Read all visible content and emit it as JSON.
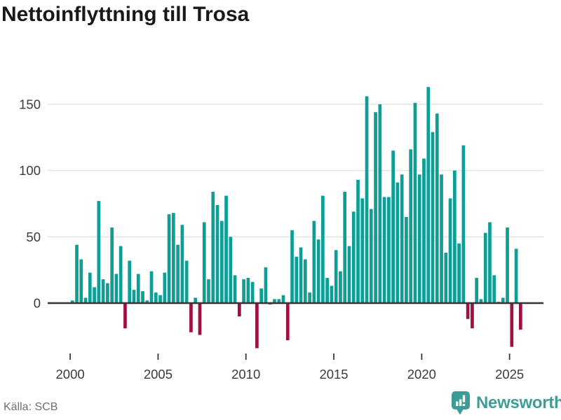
{
  "header": {
    "title": "Nettoinflyttning till Trosa"
  },
  "footer": {
    "source": "Källa: SCB",
    "brand": "Newsworthy"
  },
  "colors": {
    "positive": "#0D9E96",
    "negative": "#9E1041",
    "brand": "#3D9C98",
    "grid": "#E3E3E3",
    "axis_text": "#3A3A3A",
    "baseline": "#37373B"
  },
  "chart_data": {
    "type": "bar",
    "title": "Nettoinflyttning till Trosa",
    "x_unit": "quarter",
    "start": "2000-Q1",
    "end": "2025-Q3",
    "frequency": "quarterly",
    "ylim": [
      -40,
      170
    ],
    "y_ticks": [
      0,
      50,
      100,
      150
    ],
    "x_ticks": [
      2000,
      2005,
      2010,
      2015,
      2020,
      2025
    ],
    "grid": "horizontal",
    "legend": "none",
    "series": [
      {
        "name": "Nettoinflyttning",
        "values": [
          2,
          44,
          33,
          4,
          23,
          12,
          77,
          18,
          15,
          57,
          22,
          43,
          -19,
          32,
          10,
          22,
          9,
          2,
          24,
          8,
          6,
          23,
          67,
          68,
          44,
          59,
          32,
          -22,
          4,
          -24,
          61,
          18,
          84,
          74,
          62,
          81,
          50,
          21,
          -10,
          18,
          19,
          16,
          -34,
          11,
          27,
          -1,
          3,
          3,
          6,
          -28,
          55,
          35,
          42,
          33,
          8,
          62,
          48,
          81,
          19,
          13,
          40,
          24,
          84,
          43,
          69,
          93,
          79,
          156,
          71,
          144,
          150,
          80,
          80,
          115,
          91,
          97,
          65,
          116,
          151,
          97,
          109,
          163,
          129,
          143,
          97,
          38,
          79,
          100,
          45,
          119,
          -12,
          -19,
          19,
          3,
          53,
          61,
          21,
          1,
          4,
          57,
          -33,
          41,
          -20
        ]
      }
    ]
  }
}
